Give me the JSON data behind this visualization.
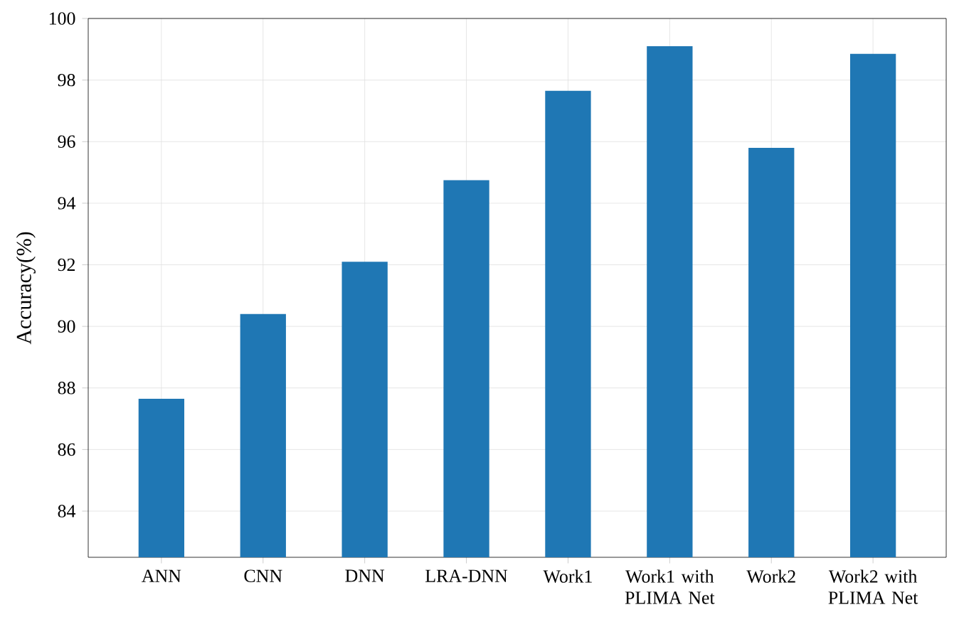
{
  "chart_data": {
    "type": "bar",
    "ylabel": "Accuracy(%)",
    "categories": [
      "ANN",
      "CNN",
      "DNN",
      "LRA-DNN",
      "Work1",
      "Work1 with PLIMA Net",
      "Work2",
      "Work2 with PLIMA Net"
    ],
    "values": [
      87.65,
      90.4,
      92.1,
      94.75,
      97.65,
      99.1,
      95.8,
      98.85
    ],
    "color": "#1f77b4",
    "ylim": [
      82.5,
      100
    ],
    "yticks": [
      84,
      86,
      88,
      90,
      92,
      94,
      96,
      98,
      100
    ],
    "grid": true
  }
}
